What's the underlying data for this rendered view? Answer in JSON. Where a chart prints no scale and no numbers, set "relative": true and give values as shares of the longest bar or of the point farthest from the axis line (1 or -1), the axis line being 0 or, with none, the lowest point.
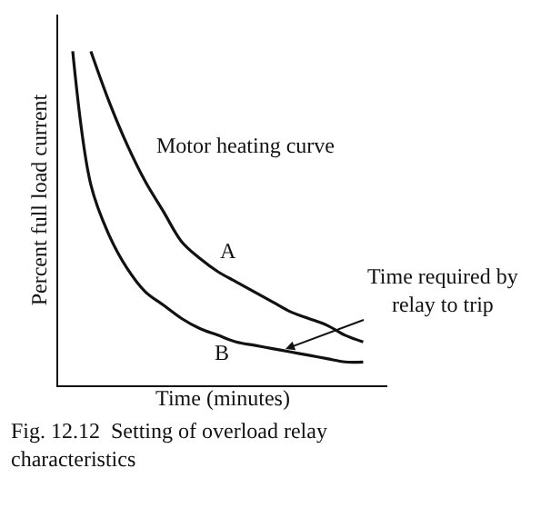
{
  "chart_data": {
    "type": "line",
    "relative": true,
    "xlabel": "Time (minutes)",
    "ylabel": "Percent full load current",
    "categories": [
      null,
      null,
      null,
      null,
      null,
      null,
      null,
      null,
      null,
      null,
      null,
      null,
      null,
      null,
      null,
      null,
      null
    ],
    "series": [
      {
        "name": "A",
        "color": "#111111",
        "values": [
          null,
          1.0,
          0.85,
          0.72,
          0.61,
          0.52,
          0.43,
          0.38,
          0.34,
          0.31,
          0.28,
          0.25,
          0.22,
          0.2,
          0.18,
          0.15,
          0.13
        ]
      },
      {
        "name": "B",
        "color": "#111111",
        "values": [
          1.0,
          0.6,
          0.45,
          0.35,
          0.28,
          0.24,
          0.2,
          0.17,
          0.15,
          0.13,
          0.12,
          0.11,
          0.1,
          0.09,
          0.08,
          0.07,
          0.07
        ]
      }
    ],
    "annotations": [
      "Motor heating curve",
      "Time required by\nrelay to trip",
      "Fig. 12.12  Setting of overload relay\ncharacteristics"
    ],
    "legend": false,
    "marker": "none",
    "line_style": "solid"
  }
}
